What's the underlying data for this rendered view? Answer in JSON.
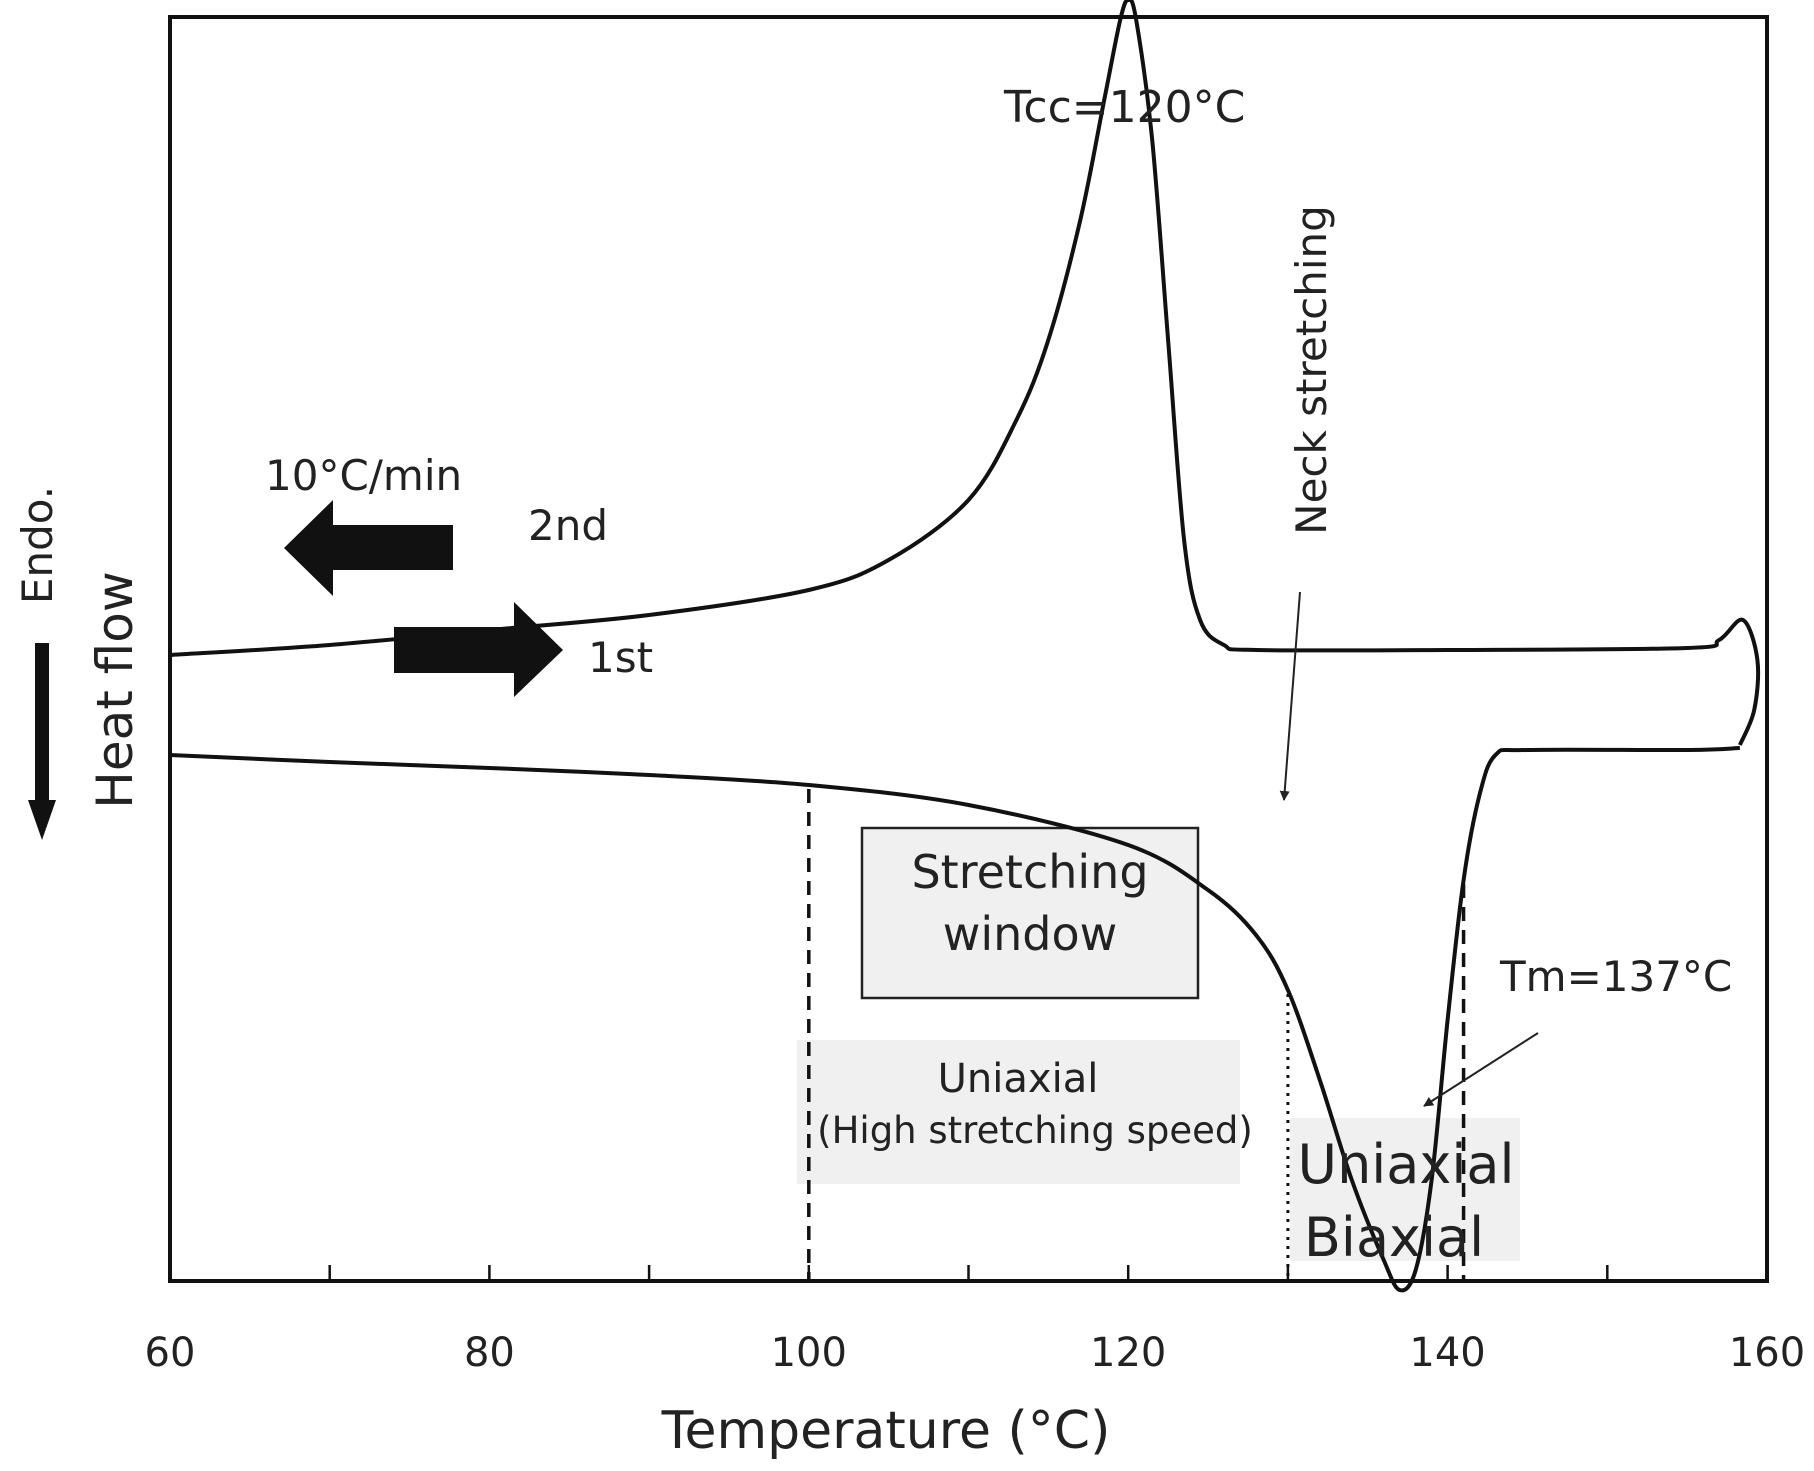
{
  "chart_data": {
    "type": "line",
    "title": "",
    "xlabel": "Temperature (°C)",
    "ylabel": "Heat flow",
    "ylabel_secondary": "Endo.",
    "xlim": [
      60,
      160
    ],
    "xticks": [
      60,
      80,
      100,
      120,
      140,
      160
    ],
    "x_minor_step": 10,
    "yticks_shown": false,
    "series": [
      {
        "name": "2nd",
        "direction": "cooling",
        "points": [
          [
            60,
            -0.55
          ],
          [
            70,
            -0.45
          ],
          [
            80,
            -0.3
          ],
          [
            90,
            -0.15
          ],
          [
            100,
            0.1
          ],
          [
            105,
            0.4
          ],
          [
            110,
            1.0
          ],
          [
            113,
            1.8
          ],
          [
            115,
            2.6
          ],
          [
            117,
            3.8
          ],
          [
            118.5,
            5.0
          ],
          [
            119.5,
            5.8
          ],
          [
            120,
            6.0
          ],
          [
            120.5,
            5.8
          ],
          [
            121.5,
            4.6
          ],
          [
            122.5,
            2.6
          ],
          [
            123.5,
            0.6
          ],
          [
            124.5,
            -0.2
          ],
          [
            126,
            -0.45
          ],
          [
            128,
            -0.5
          ],
          [
            140,
            -0.5
          ],
          [
            155,
            -0.48
          ],
          [
            157,
            -0.4
          ],
          [
            158.5,
            -0.2
          ],
          [
            159.4,
            -0.6
          ],
          [
            159.2,
            -1.1
          ],
          [
            158.3,
            -1.45
          ]
        ]
      },
      {
        "name": "1st",
        "direction": "heating",
        "points": [
          [
            60,
            -1.55
          ],
          [
            70,
            -1.62
          ],
          [
            80,
            -1.68
          ],
          [
            90,
            -1.75
          ],
          [
            100,
            -1.85
          ],
          [
            110,
            -2.05
          ],
          [
            120,
            -2.45
          ],
          [
            125,
            -2.9
          ],
          [
            128,
            -3.35
          ],
          [
            130,
            -3.9
          ],
          [
            132,
            -4.8
          ],
          [
            134,
            -5.8
          ],
          [
            136,
            -6.6
          ],
          [
            137,
            -6.9
          ],
          [
            138,
            -6.7
          ],
          [
            139,
            -5.8
          ],
          [
            140,
            -4.2
          ],
          [
            141,
            -2.8
          ],
          [
            142,
            -1.95
          ],
          [
            143,
            -1.55
          ],
          [
            145,
            -1.5
          ],
          [
            155,
            -1.5
          ],
          [
            158.3,
            -1.48
          ]
        ]
      }
    ],
    "vertical_markers": [
      {
        "x": 100,
        "style": "dashed",
        "label": "Uniaxial (High stretching speed)"
      },
      {
        "x": 130,
        "style": "dotted",
        "label": "Neck stretching"
      },
      {
        "x": 141,
        "style": "dashed",
        "label": "Uniaxial Biaxial"
      }
    ],
    "annotations": {
      "tcc": "Tcc=120°C",
      "tm": "Tm=137°C",
      "rate": "10°C/min",
      "second": "2nd",
      "first": "1st",
      "neck": "Neck stretching",
      "window_line1": "Stretching",
      "window_line2": "window",
      "uniaxial_hs_line1": "Uniaxial",
      "uniaxial_hs_line2": "(High stretching speed)",
      "uniaxial": "Uniaxial",
      "biaxial": "Biaxial"
    }
  }
}
